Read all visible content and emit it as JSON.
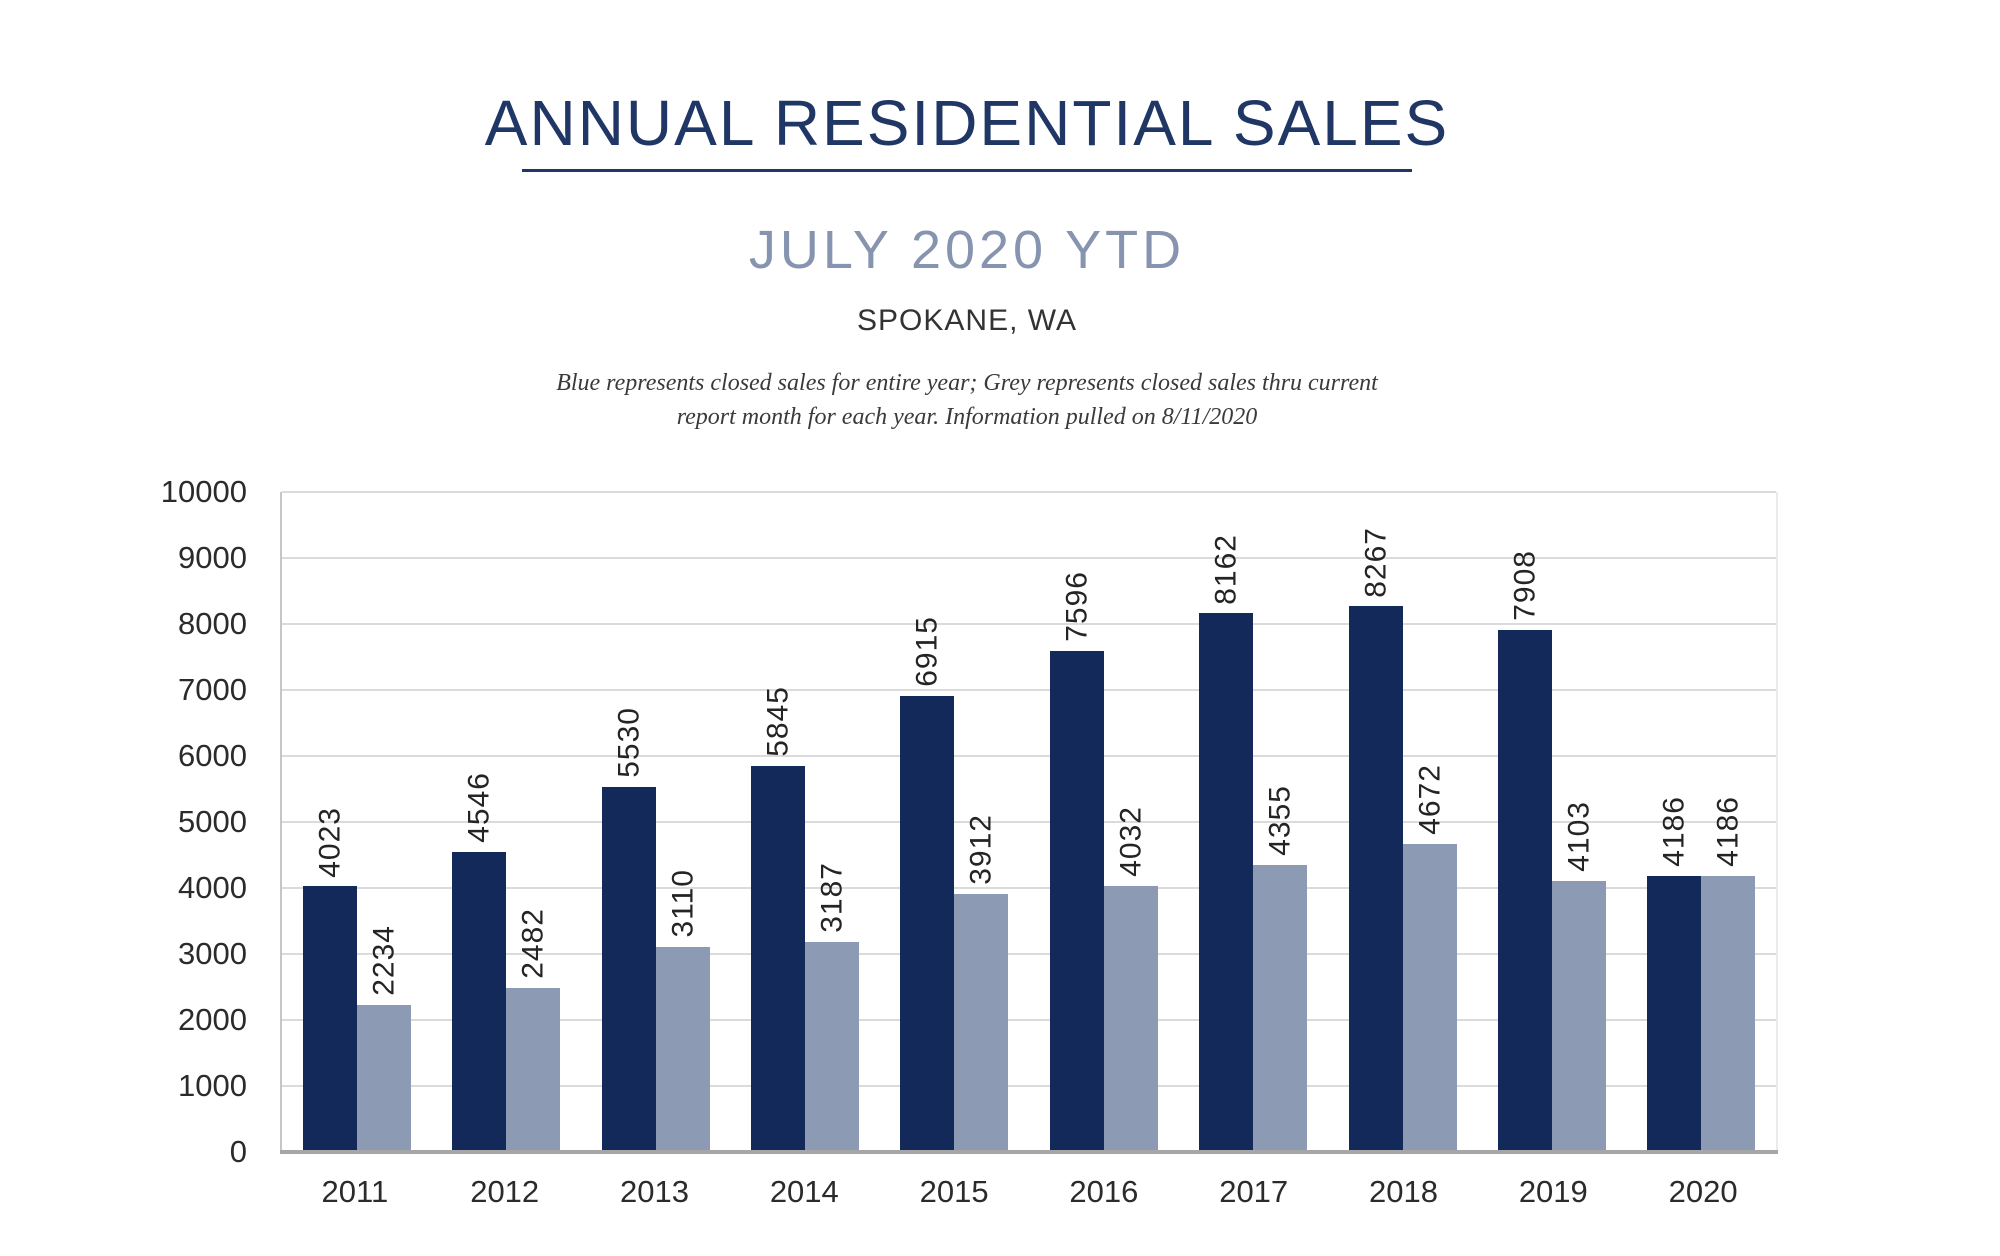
{
  "header": {
    "title": "ANNUAL RESIDENTIAL SALES",
    "subtitle": "JULY 2020 YTD",
    "location": "SPOKANE, WA",
    "note_line1": "Blue represents closed sales for entire year; Grey represents closed sales thru current",
    "note_line2": "report month for each year.  Information pulled on 8/11/2020"
  },
  "colors": {
    "bar_navy": "#12295A",
    "bar_grey": "#8C9BB3",
    "title_navy": "#203765",
    "subtitle_grey": "#8694B0",
    "gridline": "#DBDBDB",
    "axis_line": "#C6C6C6",
    "baseline": "#A6A6A6",
    "tick_label": "#2B2B2B"
  },
  "chart_data": {
    "type": "bar",
    "title": "ANNUAL RESIDENTIAL SALES",
    "subtitle": "JULY 2020 YTD",
    "location": "SPOKANE, WA",
    "categories": [
      "2011",
      "2012",
      "2013",
      "2014",
      "2015",
      "2016",
      "2017",
      "2018",
      "2019",
      "2020"
    ],
    "series": [
      {
        "name": "Blue — closed sales for entire year",
        "color": "#12295A",
        "values": [
          4023,
          4546,
          5530,
          5845,
          6915,
          7596,
          8162,
          8267,
          7908,
          4186
        ]
      },
      {
        "name": "Grey — closed sales thru current report month",
        "color": "#8C9BB3",
        "values": [
          2234,
          2482,
          3110,
          3187,
          3912,
          4032,
          4355,
          4672,
          4103,
          4186
        ]
      }
    ],
    "xlabel": "",
    "ylabel": "",
    "ylim": [
      0,
      10000
    ],
    "ytick_step": 1000,
    "grid": true,
    "legend_position": "none",
    "value_labels": "rotated-90-above-bars"
  }
}
